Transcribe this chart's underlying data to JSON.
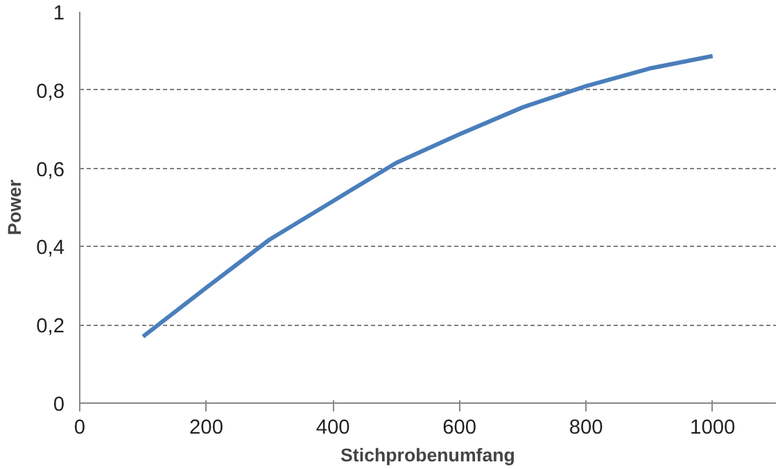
{
  "chart_data": {
    "type": "line",
    "xlabel": "Stichprobenumfang",
    "ylabel": "Power",
    "x": [
      100,
      200,
      300,
      400,
      500,
      600,
      700,
      800,
      900,
      1000
    ],
    "series": [
      {
        "color": "#4a7ebb",
        "values": [
          0.17,
          0.295,
          0.418,
          0.516,
          0.614,
          0.687,
          0.756,
          0.81,
          0.855,
          0.887
        ]
      }
    ],
    "xlim": [
      0,
      1100
    ],
    "xticks": [
      0,
      200,
      400,
      600,
      800,
      1000
    ],
    "ylim": [
      0,
      1
    ],
    "yticks": [
      {
        "value": 0,
        "label": "0"
      },
      {
        "value": 0.2,
        "label": "0,2"
      },
      {
        "value": 0.4,
        "label": "0,4"
      },
      {
        "value": 0.6,
        "label": "0,6"
      },
      {
        "value": 0.8,
        "label": "0,8"
      },
      {
        "value": 1,
        "label": "1"
      }
    ],
    "grid": "y",
    "marker": "none",
    "line_style": "solid"
  }
}
